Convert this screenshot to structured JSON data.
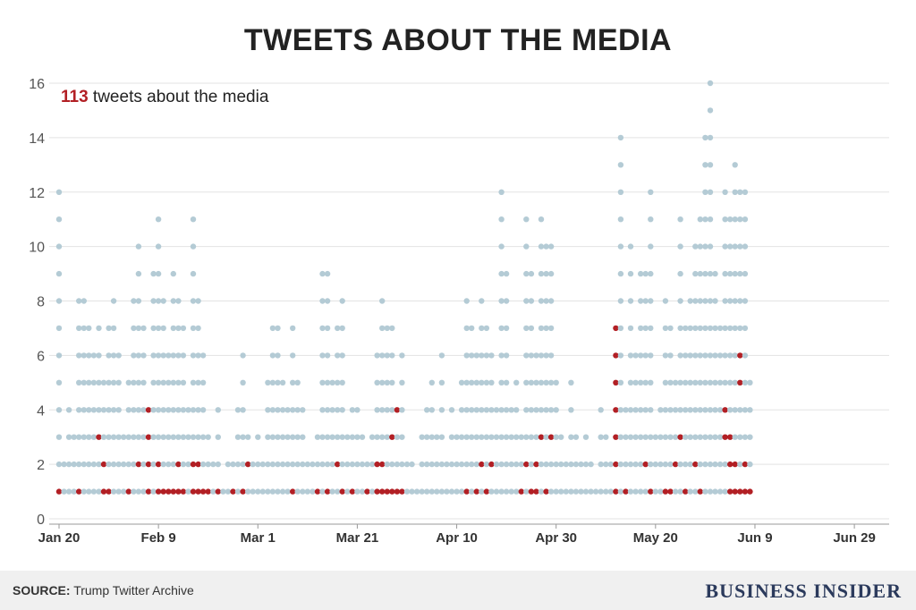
{
  "title": "TWEETS ABOUT THE MEDIA",
  "annotation": {
    "count": "113",
    "text": " tweets about the media"
  },
  "footer": {
    "source_label": "SOURCE:",
    "source_text": " Trump Twitter Archive",
    "brand": "BUSINESS INSIDER"
  },
  "colors": {
    "background_dot": "#b4cbd5",
    "media_dot": "#b21f24",
    "grid": "#e3e3e3",
    "footer_bg": "#f0f0f0"
  },
  "chart_data": {
    "type": "scatter",
    "title": "TWEETS ABOUT THE MEDIA",
    "xlabel": "",
    "ylabel": "",
    "x_range": [
      "2017-01-20",
      "2017-07-06"
    ],
    "ylim": [
      0,
      16
    ],
    "y_ticks": [
      0,
      2,
      4,
      6,
      8,
      10,
      12,
      14,
      16
    ],
    "x_ticks": [
      {
        "date": "2017-01-20",
        "label": "Jan 20"
      },
      {
        "date": "2017-02-09",
        "label": "Feb 9"
      },
      {
        "date": "2017-03-01",
        "label": "Mar 1"
      },
      {
        "date": "2017-03-21",
        "label": "Mar 21"
      },
      {
        "date": "2017-04-10",
        "label": "Apr 10"
      },
      {
        "date": "2017-04-30",
        "label": "Apr 30"
      },
      {
        "date": "2017-05-20",
        "label": "May 20"
      },
      {
        "date": "2017-06-09",
        "label": "Jun 9"
      },
      {
        "date": "2017-06-29",
        "label": "Jun 29"
      }
    ],
    "grid": true,
    "legend": "none",
    "series": [
      {
        "name": "tweets",
        "unit": "tweets per day (stacked dots)",
        "daily_counts": [
          {
            "date": "2017-01-20",
            "total": 12,
            "media": [
              1
            ]
          },
          {
            "date": "2017-01-21",
            "total": 2,
            "media": []
          },
          {
            "date": "2017-01-22",
            "total": 4,
            "media": []
          },
          {
            "date": "2017-01-23",
            "total": 3,
            "media": []
          },
          {
            "date": "2017-01-24",
            "total": 8,
            "media": [
              1
            ]
          },
          {
            "date": "2017-01-25",
            "total": 8,
            "media": []
          },
          {
            "date": "2017-01-26",
            "total": 7,
            "media": []
          },
          {
            "date": "2017-01-27",
            "total": 6,
            "media": []
          },
          {
            "date": "2017-01-28",
            "total": 7,
            "media": [
              3
            ]
          },
          {
            "date": "2017-01-29",
            "total": 5,
            "media": [
              1,
              2
            ]
          },
          {
            "date": "2017-01-30",
            "total": 7,
            "media": [
              1
            ]
          },
          {
            "date": "2017-01-31",
            "total": 8,
            "media": []
          },
          {
            "date": "2017-02-01",
            "total": 6,
            "media": []
          },
          {
            "date": "2017-02-02",
            "total": 3,
            "media": []
          },
          {
            "date": "2017-02-03",
            "total": 5,
            "media": [
              1
            ]
          },
          {
            "date": "2017-02-04",
            "total": 8,
            "media": []
          },
          {
            "date": "2017-02-05",
            "total": 10,
            "media": [
              2
            ]
          },
          {
            "date": "2017-02-06",
            "total": 7,
            "media": []
          },
          {
            "date": "2017-02-07",
            "total": 4,
            "media": [
              1,
              2,
              3,
              4
            ]
          },
          {
            "date": "2017-02-08",
            "total": 9,
            "media": []
          },
          {
            "date": "2017-02-09",
            "total": 11,
            "media": [
              1,
              2
            ]
          },
          {
            "date": "2017-02-10",
            "total": 8,
            "media": [
              1
            ]
          },
          {
            "date": "2017-02-11",
            "total": 6,
            "media": [
              1
            ]
          },
          {
            "date": "2017-02-12",
            "total": 9,
            "media": [
              1
            ]
          },
          {
            "date": "2017-02-13",
            "total": 8,
            "media": [
              1,
              2
            ]
          },
          {
            "date": "2017-02-14",
            "total": 7,
            "media": [
              1
            ]
          },
          {
            "date": "2017-02-15",
            "total": 4,
            "media": []
          },
          {
            "date": "2017-02-16",
            "total": 11,
            "media": [
              1,
              2
            ]
          },
          {
            "date": "2017-02-17",
            "total": 8,
            "media": [
              1,
              2
            ]
          },
          {
            "date": "2017-02-18",
            "total": 6,
            "media": [
              1
            ]
          },
          {
            "date": "2017-02-19",
            "total": 3,
            "media": [
              1
            ]
          },
          {
            "date": "2017-02-20",
            "total": 2,
            "media": []
          },
          {
            "date": "2017-02-21",
            "total": 4,
            "media": [
              1
            ]
          },
          {
            "date": "2017-02-22",
            "total": 1,
            "media": []
          },
          {
            "date": "2017-02-23",
            "total": 2,
            "media": []
          },
          {
            "date": "2017-02-24",
            "total": 2,
            "media": [
              1
            ]
          },
          {
            "date": "2017-02-25",
            "total": 4,
            "media": []
          },
          {
            "date": "2017-02-26",
            "total": 6,
            "media": [
              1
            ]
          },
          {
            "date": "2017-02-27",
            "total": 3,
            "media": [
              2
            ]
          },
          {
            "date": "2017-02-28",
            "total": 2,
            "media": []
          },
          {
            "date": "2017-03-01",
            "total": 3,
            "media": []
          },
          {
            "date": "2017-03-02",
            "total": 2,
            "media": []
          },
          {
            "date": "2017-03-03",
            "total": 5,
            "media": []
          },
          {
            "date": "2017-03-04",
            "total": 7,
            "media": []
          },
          {
            "date": "2017-03-05",
            "total": 7,
            "media": []
          },
          {
            "date": "2017-03-06",
            "total": 5,
            "media": []
          },
          {
            "date": "2017-03-07",
            "total": 4,
            "media": []
          },
          {
            "date": "2017-03-08",
            "total": 7,
            "media": [
              1
            ]
          },
          {
            "date": "2017-03-09",
            "total": 5,
            "media": []
          },
          {
            "date": "2017-03-10",
            "total": 4,
            "media": []
          },
          {
            "date": "2017-03-11",
            "total": 2,
            "media": []
          },
          {
            "date": "2017-03-12",
            "total": 2,
            "media": []
          },
          {
            "date": "2017-03-13",
            "total": 3,
            "media": [
              1
            ]
          },
          {
            "date": "2017-03-14",
            "total": 9,
            "media": []
          },
          {
            "date": "2017-03-15",
            "total": 9,
            "media": [
              1
            ]
          },
          {
            "date": "2017-03-16",
            "total": 5,
            "media": []
          },
          {
            "date": "2017-03-17",
            "total": 7,
            "media": [
              2
            ]
          },
          {
            "date": "2017-03-18",
            "total": 8,
            "media": [
              1
            ]
          },
          {
            "date": "2017-03-19",
            "total": 3,
            "media": []
          },
          {
            "date": "2017-03-20",
            "total": 4,
            "media": [
              1
            ]
          },
          {
            "date": "2017-03-21",
            "total": 4,
            "media": []
          },
          {
            "date": "2017-03-22",
            "total": 3,
            "media": []
          },
          {
            "date": "2017-03-23",
            "total": 2,
            "media": [
              1
            ]
          },
          {
            "date": "2017-03-24",
            "total": 3,
            "media": []
          },
          {
            "date": "2017-03-25",
            "total": 6,
            "media": [
              1,
              2
            ]
          },
          {
            "date": "2017-03-26",
            "total": 8,
            "media": [
              1,
              2
            ]
          },
          {
            "date": "2017-03-27",
            "total": 7,
            "media": [
              1
            ]
          },
          {
            "date": "2017-03-28",
            "total": 7,
            "media": [
              1,
              3
            ]
          },
          {
            "date": "2017-03-29",
            "total": 4,
            "media": [
              1,
              4
            ]
          },
          {
            "date": "2017-03-30",
            "total": 6,
            "media": [
              1
            ]
          },
          {
            "date": "2017-03-31",
            "total": 2,
            "media": []
          },
          {
            "date": "2017-04-01",
            "total": 2,
            "media": []
          },
          {
            "date": "2017-04-02",
            "total": 1,
            "media": []
          },
          {
            "date": "2017-04-03",
            "total": 3,
            "media": []
          },
          {
            "date": "2017-04-04",
            "total": 4,
            "media": []
          },
          {
            "date": "2017-04-05",
            "total": 5,
            "media": []
          },
          {
            "date": "2017-04-06",
            "total": 3,
            "media": []
          },
          {
            "date": "2017-04-07",
            "total": 6,
            "media": []
          },
          {
            "date": "2017-04-08",
            "total": 2,
            "media": []
          },
          {
            "date": "2017-04-09",
            "total": 4,
            "media": []
          },
          {
            "date": "2017-04-10",
            "total": 3,
            "media": []
          },
          {
            "date": "2017-04-11",
            "total": 5,
            "media": []
          },
          {
            "date": "2017-04-12",
            "total": 8,
            "media": [
              1
            ]
          },
          {
            "date": "2017-04-13",
            "total": 7,
            "media": []
          },
          {
            "date": "2017-04-14",
            "total": 6,
            "media": [
              1
            ]
          },
          {
            "date": "2017-04-15",
            "total": 8,
            "media": [
              2
            ]
          },
          {
            "date": "2017-04-16",
            "total": 7,
            "media": [
              1
            ]
          },
          {
            "date": "2017-04-17",
            "total": 6,
            "media": [
              2
            ]
          },
          {
            "date": "2017-04-18",
            "total": 4,
            "media": []
          },
          {
            "date": "2017-04-19",
            "total": 12,
            "media": []
          },
          {
            "date": "2017-04-20",
            "total": 9,
            "media": []
          },
          {
            "date": "2017-04-21",
            "total": 4,
            "media": []
          },
          {
            "date": "2017-04-22",
            "total": 5,
            "media": []
          },
          {
            "date": "2017-04-23",
            "total": 3,
            "media": [
              1
            ]
          },
          {
            "date": "2017-04-24",
            "total": 11,
            "media": [
              2
            ]
          },
          {
            "date": "2017-04-25",
            "total": 9,
            "media": [
              1
            ]
          },
          {
            "date": "2017-04-26",
            "total": 6,
            "media": [
              1,
              2
            ]
          },
          {
            "date": "2017-04-27",
            "total": 11,
            "media": [
              3
            ]
          },
          {
            "date": "2017-04-28",
            "total": 10,
            "media": [
              1
            ]
          },
          {
            "date": "2017-04-29",
            "total": 10,
            "media": [
              3
            ]
          },
          {
            "date": "2017-04-30",
            "total": 5,
            "media": []
          },
          {
            "date": "2017-05-01",
            "total": 3,
            "media": []
          },
          {
            "date": "2017-05-02",
            "total": 2,
            "media": []
          },
          {
            "date": "2017-05-03",
            "total": 5,
            "media": []
          },
          {
            "date": "2017-05-04",
            "total": 3,
            "media": []
          },
          {
            "date": "2017-05-05",
            "total": 2,
            "media": []
          },
          {
            "date": "2017-05-06",
            "total": 3,
            "media": []
          },
          {
            "date": "2017-05-07",
            "total": 2,
            "media": []
          },
          {
            "date": "2017-05-08",
            "total": 1,
            "media": []
          },
          {
            "date": "2017-05-09",
            "total": 4,
            "media": []
          },
          {
            "date": "2017-05-10",
            "total": 3,
            "media": []
          },
          {
            "date": "2017-05-11",
            "total": 2,
            "media": []
          },
          {
            "date": "2017-05-12",
            "total": 7,
            "media": [
              1,
              2,
              3,
              4,
              5,
              6,
              7
            ]
          },
          {
            "date": "2017-05-13",
            "total": 14,
            "media": []
          },
          {
            "date": "2017-05-14",
            "total": 4,
            "media": [
              1
            ]
          },
          {
            "date": "2017-05-15",
            "total": 10,
            "media": []
          },
          {
            "date": "2017-05-16",
            "total": 6,
            "media": []
          },
          {
            "date": "2017-05-17",
            "total": 9,
            "media": []
          },
          {
            "date": "2017-05-18",
            "total": 9,
            "media": [
              2
            ]
          },
          {
            "date": "2017-05-19",
            "total": 12,
            "media": [
              1
            ]
          },
          {
            "date": "2017-05-20",
            "total": 3,
            "media": []
          },
          {
            "date": "2017-05-21",
            "total": 4,
            "media": []
          },
          {
            "date": "2017-05-22",
            "total": 8,
            "media": [
              1
            ]
          },
          {
            "date": "2017-05-23",
            "total": 7,
            "media": [
              1
            ]
          },
          {
            "date": "2017-05-24",
            "total": 5,
            "media": [
              2
            ]
          },
          {
            "date": "2017-05-25",
            "total": 11,
            "media": [
              3
            ]
          },
          {
            "date": "2017-05-26",
            "total": 7,
            "media": [
              1
            ]
          },
          {
            "date": "2017-05-27",
            "total": 8,
            "media": []
          },
          {
            "date": "2017-05-28",
            "total": 10,
            "media": [
              2
            ]
          },
          {
            "date": "2017-05-29",
            "total": 11,
            "media": [
              1
            ]
          },
          {
            "date": "2017-05-30",
            "total": 14,
            "media": []
          },
          {
            "date": "2017-05-31",
            "total": 16,
            "media": []
          },
          {
            "date": "2017-06-01",
            "total": 9,
            "media": []
          },
          {
            "date": "2017-06-02",
            "total": 7,
            "media": []
          },
          {
            "date": "2017-06-03",
            "total": 12,
            "media": [
              3,
              4
            ]
          },
          {
            "date": "2017-06-04",
            "total": 11,
            "media": [
              1,
              2,
              3
            ]
          },
          {
            "date": "2017-06-05",
            "total": 13,
            "media": [
              1,
              2
            ]
          },
          {
            "date": "2017-06-06",
            "total": 12,
            "media": [
              1,
              5,
              6
            ]
          },
          {
            "date": "2017-06-07",
            "total": 12,
            "media": [
              1,
              2
            ]
          },
          {
            "date": "2017-06-08",
            "total": 5,
            "media": [
              1
            ]
          }
        ]
      }
    ]
  }
}
